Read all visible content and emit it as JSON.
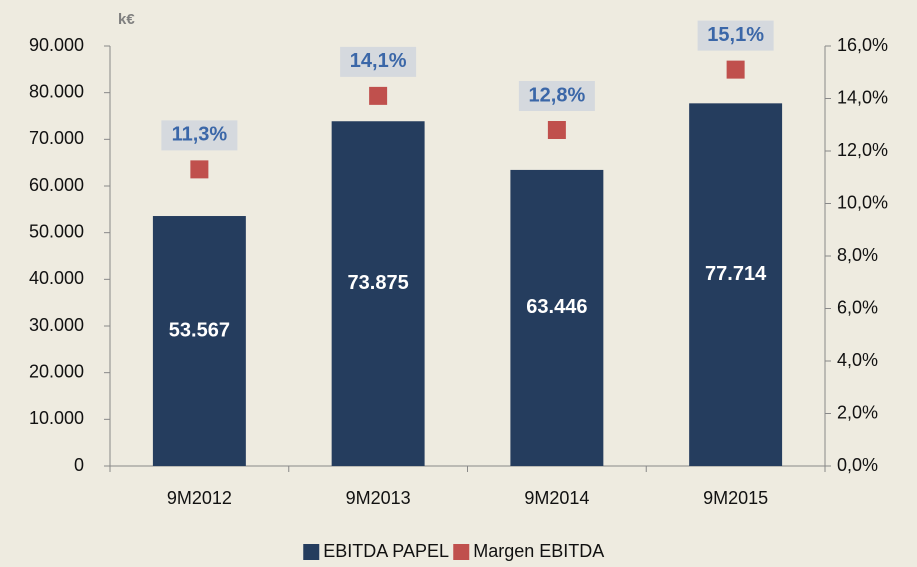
{
  "chart_data": {
    "type": "bar",
    "y_label": "k€",
    "categories": [
      "9M2012",
      "9M2013",
      "9M2014",
      "9M2015"
    ],
    "series": [
      {
        "name": "EBITDA PAPEL",
        "color": "#253d5e",
        "values": [
          53567,
          73875,
          63446,
          77714
        ],
        "value_labels": [
          "53.567",
          "73.875",
          "63.446",
          "77.714"
        ]
      },
      {
        "name": "Margen EBITDA",
        "color": "#c0504d",
        "axis": "y2",
        "values": [
          11.3,
          14.1,
          12.8,
          15.1
        ],
        "value_labels": [
          "11,3%",
          "14,1%",
          "12,8%",
          "15,1%"
        ]
      }
    ],
    "ylim": [
      0,
      90000
    ],
    "yticks": [
      0,
      {
        "value": 10000,
        "label": "10.000"
      },
      {
        "value": 20000,
        "label": "20.000"
      },
      {
        "value": 30000,
        "label": "30.000"
      },
      {
        "value": 40000,
        "label": "40.000"
      },
      {
        "value": 50000,
        "label": "50.000"
      },
      {
        "value": 60000,
        "label": "60.000"
      },
      {
        "value": 70000,
        "label": "70.000"
      },
      {
        "value": 80000,
        "label": "80.000"
      },
      {
        "value": 90000,
        "label": "90.000"
      }
    ],
    "y2lim": [
      0,
      16
    ],
    "y2ticks": [
      {
        "value": 0,
        "label": "0,0%"
      },
      {
        "value": 2,
        "label": "2,0%"
      },
      {
        "value": 4,
        "label": "4,0%"
      },
      {
        "value": 6,
        "label": "6,0%"
      },
      {
        "value": 8,
        "label": "8,0%"
      },
      {
        "value": 10,
        "label": "10,0%"
      },
      {
        "value": 12,
        "label": "12,0%"
      },
      {
        "value": 14,
        "label": "14,0%"
      },
      {
        "value": 16,
        "label": "16,0%"
      }
    ],
    "grid": false,
    "legend": "bottom"
  }
}
